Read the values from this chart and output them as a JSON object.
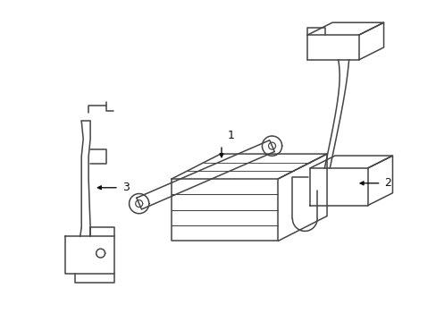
{
  "bg_color": "#ffffff",
  "line_color": "#444444",
  "lw": 1.1,
  "label_fontsize": 9,
  "label_color": "#111111",
  "figsize": [
    4.89,
    3.6
  ],
  "dpi": 100,
  "arrow_color": "#111111"
}
